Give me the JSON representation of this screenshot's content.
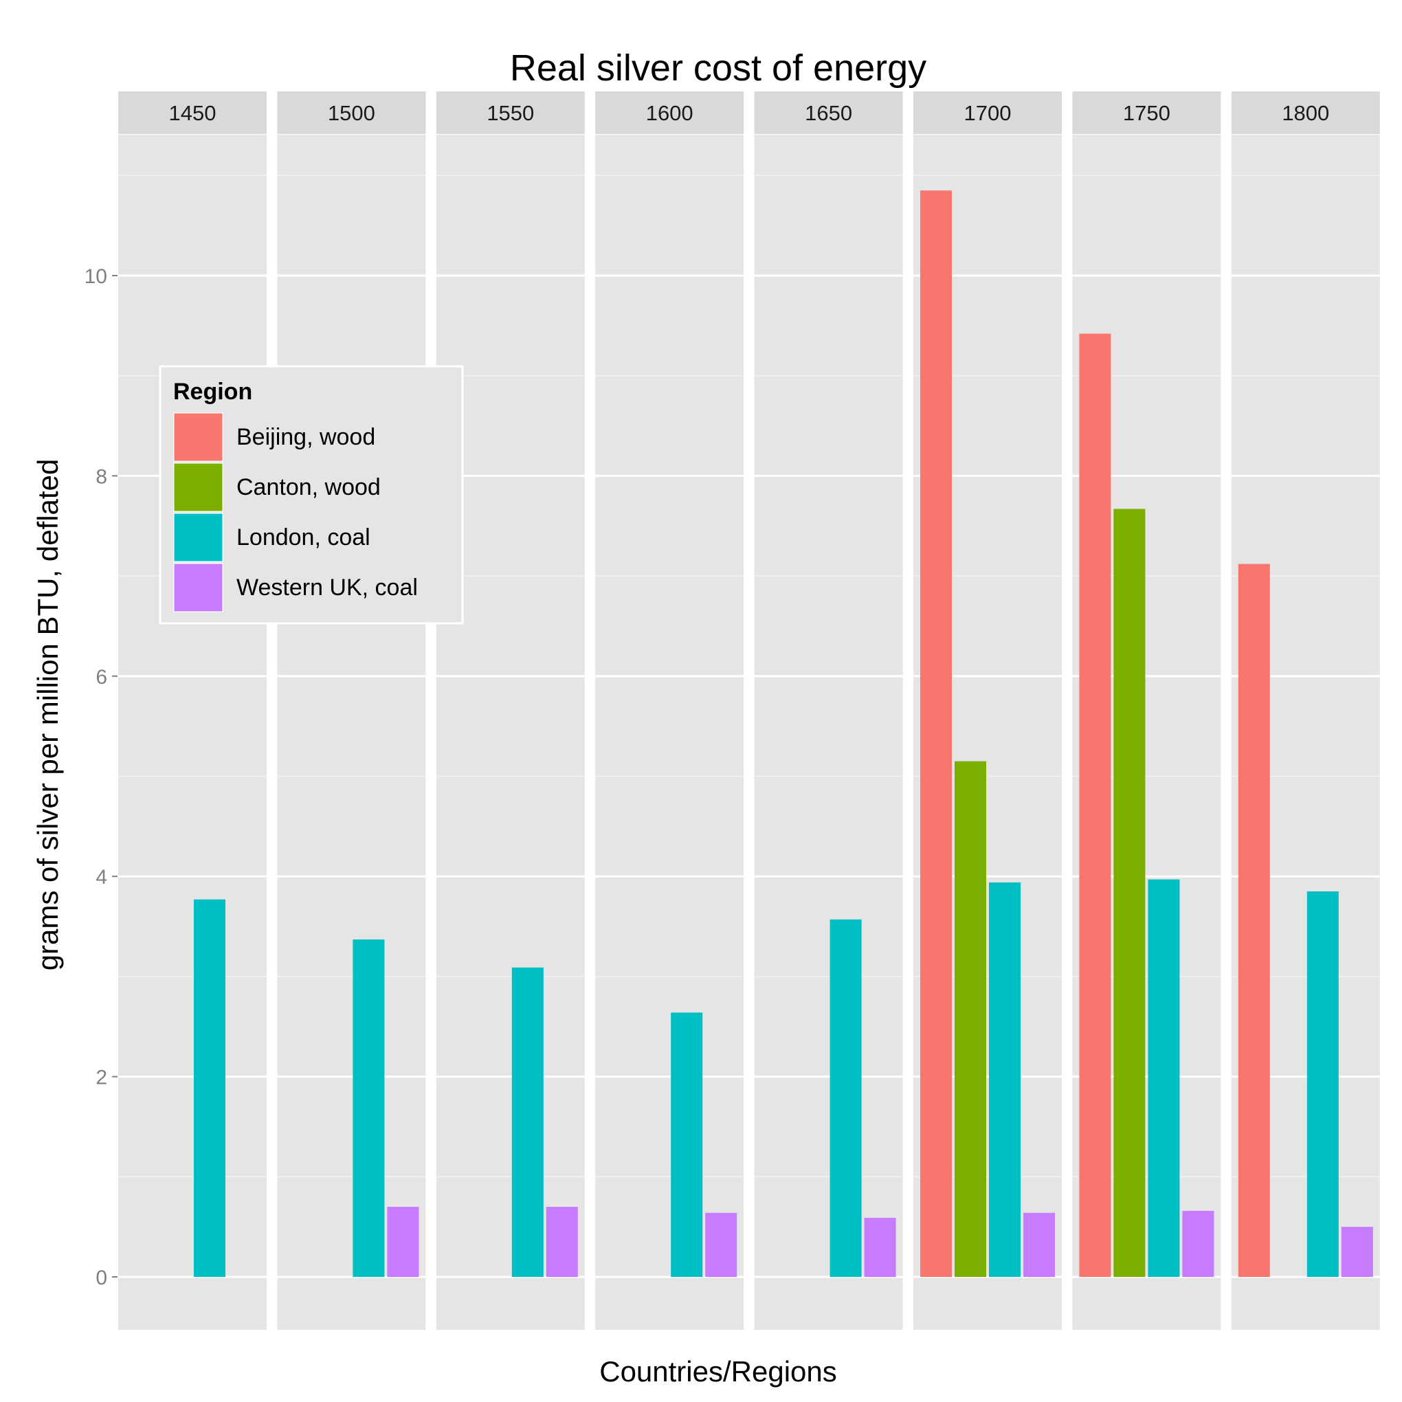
{
  "chart_data": {
    "type": "bar",
    "title": "Real silver cost of energy",
    "xlabel": "Countries/Regions",
    "ylabel": "grams of silver per million BTU, deflated",
    "ylim": [
      -0.6,
      11.1
    ],
    "yticks": [
      0,
      2,
      4,
      6,
      8,
      10
    ],
    "grid": true,
    "legend": {
      "title": "Region",
      "position": "left-middle (inside plot)"
    },
    "facets": [
      "1450",
      "1500",
      "1550",
      "1600",
      "1650",
      "1700",
      "1750",
      "1800"
    ],
    "series": [
      {
        "name": "Beijing, wood",
        "color": "#F8766D",
        "values": [
          null,
          null,
          null,
          null,
          null,
          10.85,
          9.42,
          7.12
        ]
      },
      {
        "name": "Canton, wood",
        "color": "#7CAE00",
        "values": [
          null,
          null,
          null,
          null,
          null,
          5.15,
          7.67,
          null
        ]
      },
      {
        "name": "London, coal",
        "color": "#00BFC4",
        "values": [
          3.77,
          3.37,
          3.09,
          2.64,
          3.57,
          3.94,
          3.97,
          3.85
        ]
      },
      {
        "name": "Western UK, coal",
        "color": "#C77CFF",
        "values": [
          null,
          0.7,
          0.7,
          0.64,
          0.59,
          0.64,
          0.66,
          0.5
        ]
      }
    ]
  }
}
